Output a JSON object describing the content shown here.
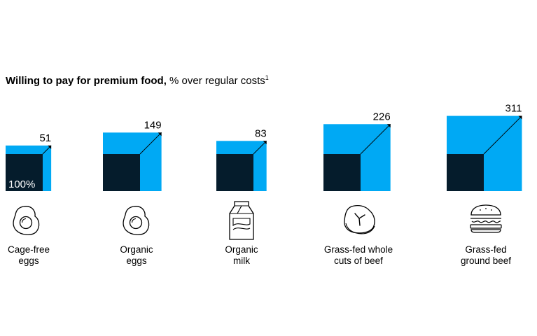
{
  "title": {
    "bold": "Willing to pay for premium food,",
    "rest": " % over regular costs",
    "footnote": "1"
  },
  "chart_data": {
    "type": "bar",
    "title": "Willing to pay for premium food, % over regular costs",
    "base_label": "100%",
    "base_value": 100,
    "categories": [
      [
        "Cage-free",
        "eggs"
      ],
      [
        "Organic",
        "eggs"
      ],
      [
        "Organic",
        "milk"
      ],
      [
        "Grass-fed whole",
        "cuts of beef"
      ],
      [
        "Grass-fed",
        "ground beef"
      ]
    ],
    "values": [
      51,
      149,
      83,
      226,
      311
    ],
    "value_labels": [
      "51",
      "149",
      "83",
      "226",
      "311"
    ],
    "colors": {
      "base": "#051c2c",
      "premium": "#00a9f4"
    }
  },
  "icons": [
    "fried-egg-icon",
    "fried-egg-icon",
    "milk-carton-icon",
    "steak-icon",
    "burger-icon"
  ]
}
